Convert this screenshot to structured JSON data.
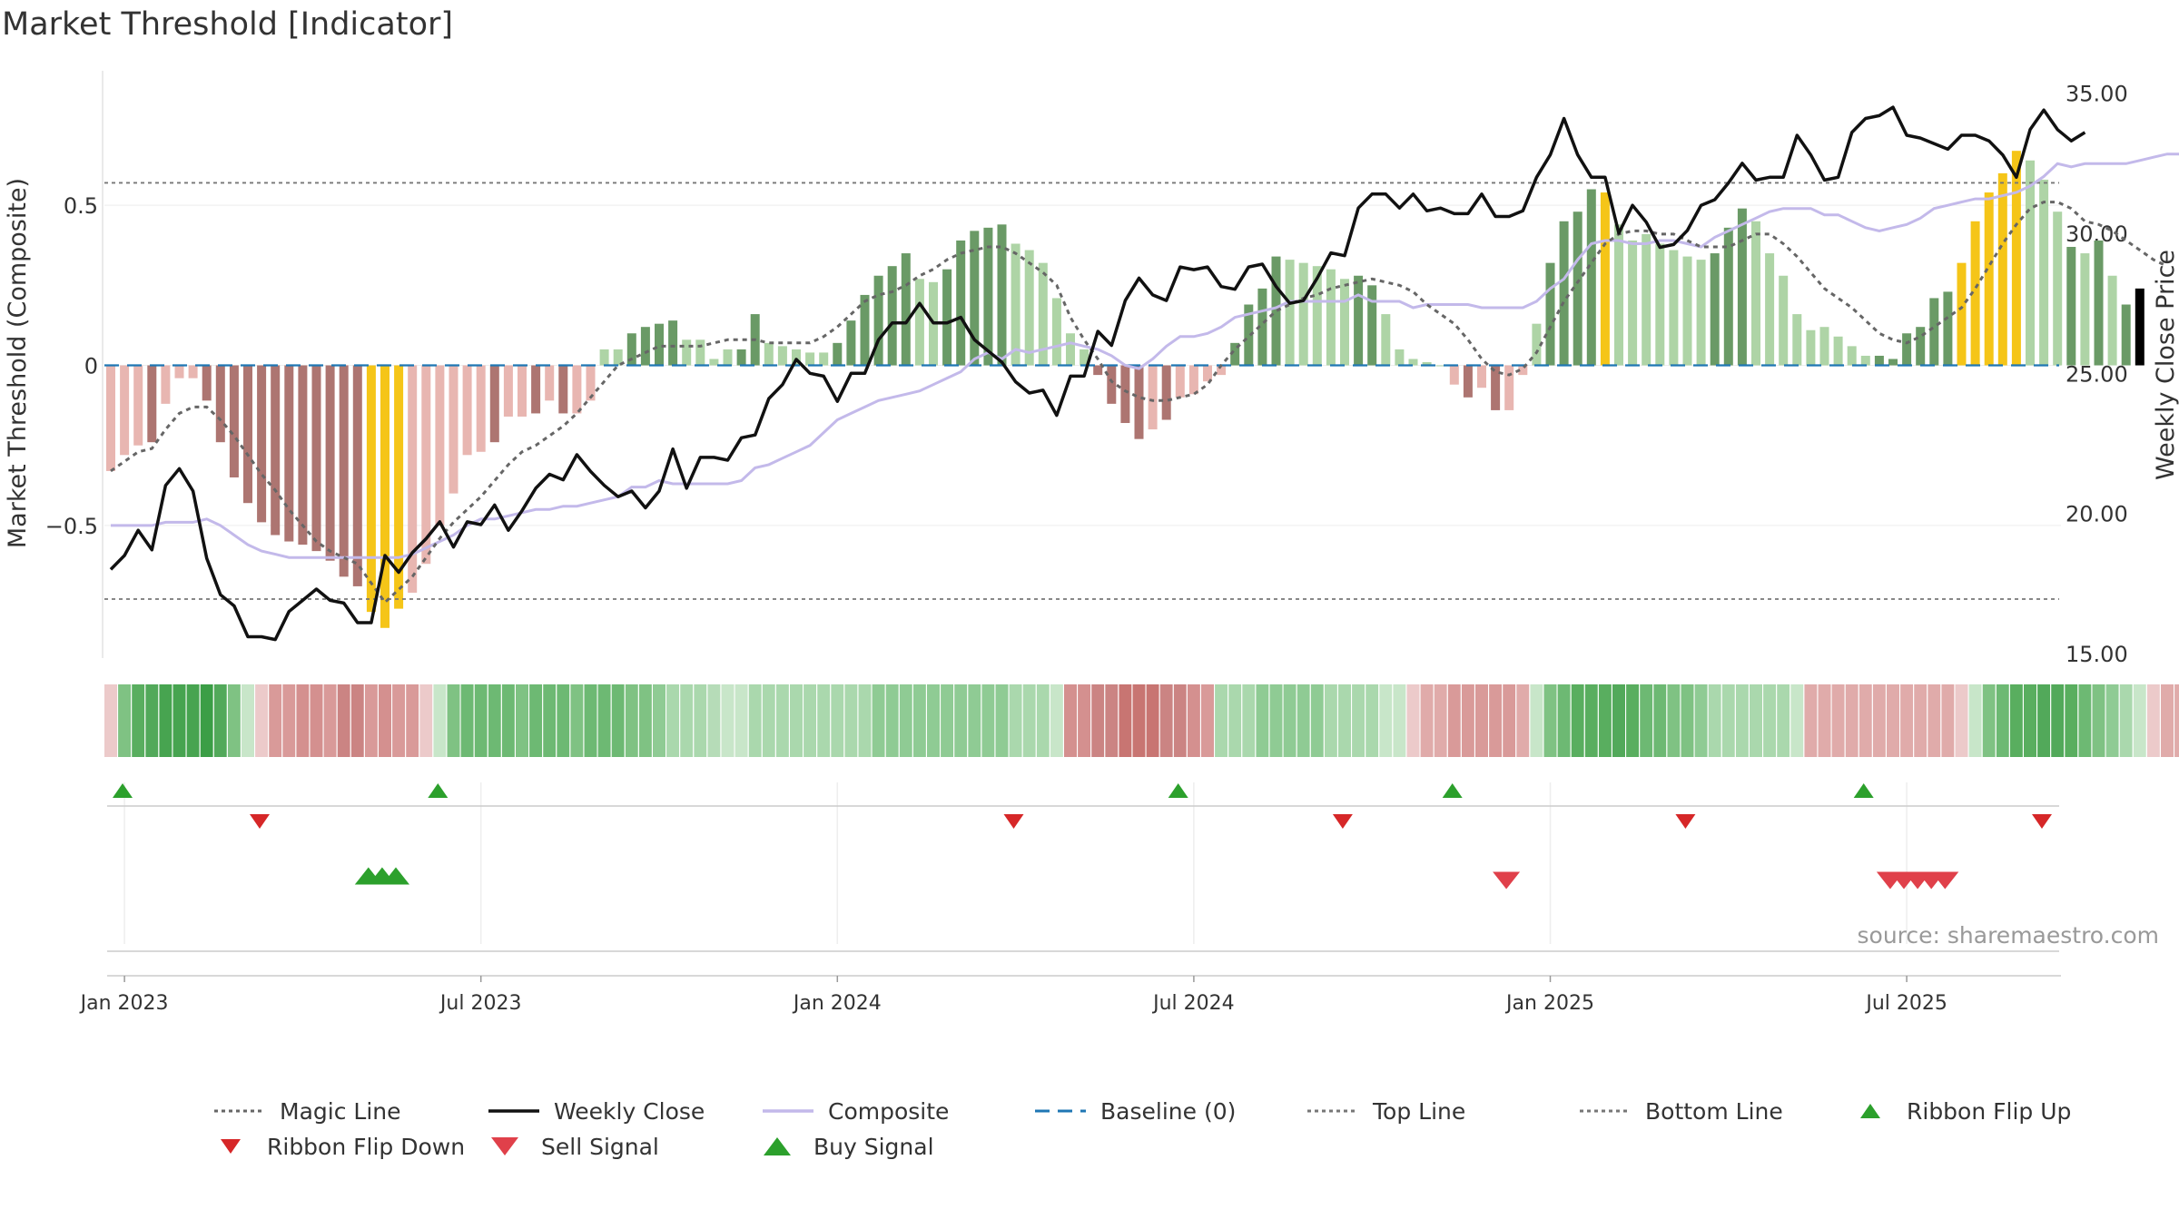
{
  "chart_data": {
    "type": "bar",
    "title": "Market Threshold [Indicator]",
    "ylabel_left": "Market Threshold (Composite)",
    "ylabel_right": "Weekly Close Price",
    "source": "source: sharemaestro.com",
    "left_ylim": [
      -0.9,
      0.92
    ],
    "right_ylim": [
      15.0,
      35.8
    ],
    "left_ticks": [
      {
        "value": 0.5,
        "label": "0.5"
      },
      {
        "value": 0,
        "label": "0"
      },
      {
        "value": -0.5,
        "label": "−0.5"
      }
    ],
    "right_ticks": [
      {
        "value": 35,
        "label": "35.00"
      },
      {
        "value": 30,
        "label": "30.00"
      },
      {
        "value": 25,
        "label": "25.00"
      },
      {
        "value": 20,
        "label": "20.00"
      },
      {
        "value": 15,
        "label": "15.00"
      }
    ],
    "x_ticks": [
      {
        "week": 1,
        "label": "Jan 2023"
      },
      {
        "week": 27,
        "label": "Jul 2023"
      },
      {
        "week": 53,
        "label": "Jan 2024"
      },
      {
        "week": 79,
        "label": "Jul 2024"
      },
      {
        "week": 105,
        "label": "Jan 2025"
      },
      {
        "week": 131,
        "label": "Jul 2025"
      }
    ],
    "top_line": 0.57,
    "bottom_line": -0.73,
    "weeks": 145,
    "composite_bars": [
      -0.33,
      -0.28,
      -0.25,
      -0.24,
      -0.12,
      -0.04,
      -0.04,
      -0.11,
      -0.24,
      -0.35,
      -0.43,
      -0.49,
      -0.53,
      -0.55,
      -0.56,
      -0.58,
      -0.61,
      -0.66,
      -0.69,
      -0.77,
      -0.82,
      -0.76,
      -0.71,
      -0.62,
      -0.5,
      -0.4,
      -0.28,
      -0.27,
      -0.24,
      -0.16,
      -0.16,
      -0.15,
      -0.11,
      -0.15,
      -0.15,
      -0.11,
      0.05,
      0.05,
      0.1,
      0.12,
      0.13,
      0.14,
      0.08,
      0.08,
      0.02,
      0.05,
      0.05,
      0.16,
      0.07,
      0.06,
      0.05,
      0.04,
      0.04,
      0.07,
      0.14,
      0.22,
      0.28,
      0.31,
      0.35,
      0.27,
      0.26,
      0.3,
      0.39,
      0.42,
      0.43,
      0.44,
      0.38,
      0.36,
      0.32,
      0.21,
      0.1,
      0.05,
      -0.03,
      -0.12,
      -0.18,
      -0.23,
      -0.2,
      -0.17,
      -0.1,
      -0.09,
      -0.05,
      -0.03,
      0.07,
      0.19,
      0.24,
      0.34,
      0.33,
      0.32,
      0.31,
      0.3,
      0.27,
      0.28,
      0.25,
      0.16,
      0.05,
      0.02,
      0.01,
      0.0,
      -0.06,
      -0.1,
      -0.07,
      -0.14,
      -0.14,
      -0.03,
      0.13,
      0.32,
      0.45,
      0.48,
      0.55,
      0.54,
      0.44,
      0.39,
      0.41,
      0.38,
      0.36,
      0.34,
      0.33,
      0.35,
      0.43,
      0.49,
      0.45,
      0.35,
      0.28,
      0.16,
      0.11,
      0.12,
      0.09,
      0.06,
      0.03,
      0.03,
      0.02,
      0.1,
      0.12,
      0.21,
      0.23,
      0.32,
      0.45,
      0.54,
      0.6,
      0.67,
      0.64,
      0.58,
      0.48,
      0.37,
      0.35,
      0.39,
      0.28,
      0.19,
      0.24
    ],
    "bar_colors": [
      "#e8b6b1",
      "#e8b6b1",
      "#e8b6b1",
      "#ad7571",
      "#e8b6b1",
      "#e8b6b1",
      "#e8b6b1",
      "#ad7571",
      "#ad7571",
      "#ad7571",
      "#ad7571",
      "#ad7571",
      "#ad7571",
      "#ad7571",
      "#ad7571",
      "#ad7571",
      "#ad7571",
      "#ad7571",
      "#ad7571",
      "#f5c518",
      "#f5c518",
      "#f5c518",
      "#e8b6b1",
      "#e8b6b1",
      "#e8b6b1",
      "#e8b6b1",
      "#e8b6b1",
      "#e8b6b1",
      "#ad7571",
      "#e8b6b1",
      "#e8b6b1",
      "#ad7571",
      "#e8b6b1",
      "#ad7571",
      "#e8b6b1",
      "#e8b6b1",
      "#aed4a6",
      "#aed4a6",
      "#6a9a66",
      "#6a9a66",
      "#6a9a66",
      "#6a9a66",
      "#aed4a6",
      "#aed4a6",
      "#aed4a6",
      "#aed4a6",
      "#6a9a66",
      "#6a9a66",
      "#aed4a6",
      "#aed4a6",
      "#aed4a6",
      "#aed4a6",
      "#aed4a6",
      "#6a9a66",
      "#6a9a66",
      "#6a9a66",
      "#6a9a66",
      "#6a9a66",
      "#6a9a66",
      "#aed4a6",
      "#aed4a6",
      "#6a9a66",
      "#6a9a66",
      "#6a9a66",
      "#6a9a66",
      "#6a9a66",
      "#aed4a6",
      "#aed4a6",
      "#aed4a6",
      "#aed4a6",
      "#aed4a6",
      "#aed4a6",
      "#ad7571",
      "#ad7571",
      "#ad7571",
      "#ad7571",
      "#e8b6b1",
      "#ad7571",
      "#e8b6b1",
      "#e8b6b1",
      "#e8b6b1",
      "#e8b6b1",
      "#6a9a66",
      "#6a9a66",
      "#6a9a66",
      "#6a9a66",
      "#aed4a6",
      "#aed4a6",
      "#aed4a6",
      "#aed4a6",
      "#aed4a6",
      "#6a9a66",
      "#6a9a66",
      "#aed4a6",
      "#aed4a6",
      "#aed4a6",
      "#aed4a6",
      "#aed4a6",
      "#e8b6b1",
      "#ad7571",
      "#e8b6b1",
      "#ad7571",
      "#e8b6b1",
      "#e8b6b1",
      "#aed4a6",
      "#6a9a66",
      "#6a9a66",
      "#6a9a66",
      "#6a9a66",
      "#f5c518",
      "#aed4a6",
      "#aed4a6",
      "#aed4a6",
      "#aed4a6",
      "#aed4a6",
      "#aed4a6",
      "#aed4a6",
      "#6a9a66",
      "#6a9a66",
      "#6a9a66",
      "#aed4a6",
      "#aed4a6",
      "#aed4a6",
      "#aed4a6",
      "#aed4a6",
      "#aed4a6",
      "#aed4a6",
      "#aed4a6",
      "#aed4a6",
      "#6a9a66",
      "#6a9a66",
      "#6a9a66",
      "#6a9a66",
      "#6a9a66",
      "#6a9a66",
      "#f5c518",
      "#f5c518",
      "#f5c518",
      "#f5c518",
      "#f5c518",
      "#aed4a6",
      "#aed4a6",
      "#aed4a6",
      "#6a9a66",
      "#aed4a6",
      "#6a9a66",
      "#aed4a6",
      "#6a9a66"
    ],
    "weekly_close": [
      18.0,
      18.5,
      19.4,
      18.7,
      21.0,
      21.6,
      20.8,
      18.4,
      17.1,
      16.7,
      15.6,
      15.6,
      15.5,
      16.5,
      16.9,
      17.3,
      16.9,
      16.8,
      16.1,
      16.1,
      18.5,
      17.9,
      18.6,
      19.1,
      19.7,
      18.8,
      19.7,
      19.6,
      20.3,
      19.4,
      20.1,
      20.9,
      21.4,
      21.2,
      22.1,
      21.5,
      21.0,
      20.6,
      20.8,
      20.2,
      20.8,
      22.3,
      20.9,
      22.0,
      22.0,
      21.9,
      22.7,
      22.8,
      24.1,
      24.6,
      25.5,
      25.0,
      24.9,
      24.0,
      25.0,
      25.0,
      26.2,
      26.8,
      26.8,
      27.5,
      26.8,
      26.8,
      27.0,
      26.2,
      25.8,
      25.4,
      24.7,
      24.3,
      24.4,
      23.5,
      24.9,
      24.9,
      26.5,
      26.0,
      27.6,
      28.4,
      27.8,
      27.6,
      28.8,
      28.7,
      28.8,
      28.1,
      28.0,
      28.8,
      28.9,
      28.1,
      27.5,
      27.6,
      28.4,
      29.3,
      29.2,
      30.9,
      31.4,
      31.4,
      30.9,
      31.4,
      30.8,
      30.9,
      30.7,
      30.7,
      31.4,
      30.6,
      30.6,
      30.8,
      32.0,
      32.8,
      34.1,
      32.8,
      32.0,
      32.0,
      30.0,
      31.0,
      30.4,
      29.5,
      29.6,
      30.1,
      31.0,
      31.2,
      31.8,
      32.5,
      31.9,
      32.0,
      32.0,
      33.5,
      32.8,
      31.9,
      32.0,
      33.6,
      34.1,
      34.2,
      34.5,
      33.5,
      33.4,
      33.2,
      33.0,
      33.5,
      33.5,
      33.3,
      32.8,
      32.0,
      33.7,
      34.4,
      33.7,
      33.3,
      33.6
    ],
    "composite_line": [
      -0.5,
      -0.5,
      -0.5,
      -0.5,
      -0.49,
      -0.49,
      -0.49,
      -0.48,
      -0.5,
      -0.53,
      -0.56,
      -0.58,
      -0.59,
      -0.6,
      -0.6,
      -0.6,
      -0.6,
      -0.6,
      -0.6,
      -0.6,
      -0.6,
      -0.6,
      -0.59,
      -0.57,
      -0.55,
      -0.53,
      -0.5,
      -0.48,
      -0.48,
      -0.47,
      -0.46,
      -0.45,
      -0.45,
      -0.44,
      -0.44,
      -0.43,
      -0.42,
      -0.41,
      -0.38,
      -0.38,
      -0.36,
      -0.37,
      -0.37,
      -0.37,
      -0.37,
      -0.37,
      -0.36,
      -0.32,
      -0.31,
      -0.29,
      -0.27,
      -0.25,
      -0.21,
      -0.17,
      -0.15,
      -0.13,
      -0.11,
      -0.1,
      -0.09,
      -0.08,
      -0.06,
      -0.04,
      -0.02,
      0.02,
      0.04,
      0.02,
      0.05,
      0.04,
      0.05,
      0.06,
      0.07,
      0.06,
      0.05,
      0.03,
      0.0,
      -0.01,
      0.02,
      0.06,
      0.09,
      0.09,
      0.1,
      0.12,
      0.15,
      0.16,
      0.17,
      0.18,
      0.2,
      0.2,
      0.2,
      0.2,
      0.2,
      0.22,
      0.2,
      0.2,
      0.2,
      0.18,
      0.19,
      0.19,
      0.19,
      0.19,
      0.18,
      0.18,
      0.18,
      0.18,
      0.2,
      0.24,
      0.27,
      0.33,
      0.38,
      0.39,
      0.39,
      0.38,
      0.38,
      0.39,
      0.39,
      0.38,
      0.37,
      0.4,
      0.42,
      0.44,
      0.46,
      0.48,
      0.49,
      0.49,
      0.49,
      0.47,
      0.47,
      0.45,
      0.43,
      0.42,
      0.43,
      0.44,
      0.46,
      0.49,
      0.5,
      0.51,
      0.52,
      0.52,
      0.53,
      0.54,
      0.56,
      0.59,
      0.63,
      0.62,
      0.63,
      0.63,
      0.63,
      0.63,
      0.64,
      0.65,
      0.66,
      0.66,
      0.66
    ],
    "magic_line": [
      -0.33,
      -0.3,
      -0.27,
      -0.26,
      -0.2,
      -0.15,
      -0.13,
      -0.13,
      -0.17,
      -0.22,
      -0.28,
      -0.34,
      -0.39,
      -0.45,
      -0.5,
      -0.55,
      -0.58,
      -0.6,
      -0.62,
      -0.68,
      -0.74,
      -0.7,
      -0.66,
      -0.6,
      -0.54,
      -0.49,
      -0.45,
      -0.41,
      -0.36,
      -0.31,
      -0.27,
      -0.25,
      -0.22,
      -0.19,
      -0.15,
      -0.1,
      -0.05,
      0.0,
      0.02,
      0.04,
      0.06,
      0.06,
      0.06,
      0.06,
      0.07,
      0.08,
      0.08,
      0.08,
      0.07,
      0.07,
      0.07,
      0.07,
      0.09,
      0.12,
      0.16,
      0.2,
      0.22,
      0.23,
      0.25,
      0.28,
      0.3,
      0.33,
      0.35,
      0.36,
      0.37,
      0.37,
      0.35,
      0.32,
      0.29,
      0.25,
      0.15,
      0.08,
      0.02,
      -0.05,
      -0.08,
      -0.1,
      -0.11,
      -0.11,
      -0.1,
      -0.09,
      -0.06,
      0.0,
      0.05,
      0.09,
      0.13,
      0.17,
      0.19,
      0.21,
      0.22,
      0.24,
      0.25,
      0.26,
      0.27,
      0.26,
      0.25,
      0.23,
      0.19,
      0.16,
      0.13,
      0.08,
      0.02,
      -0.02,
      -0.03,
      -0.01,
      0.04,
      0.12,
      0.2,
      0.26,
      0.32,
      0.38,
      0.41,
      0.42,
      0.42,
      0.41,
      0.41,
      0.39,
      0.37,
      0.37,
      0.37,
      0.39,
      0.41,
      0.41,
      0.38,
      0.34,
      0.29,
      0.24,
      0.21,
      0.18,
      0.14,
      0.1,
      0.08,
      0.07,
      0.09,
      0.12,
      0.15,
      0.18,
      0.24,
      0.31,
      0.38,
      0.44,
      0.49,
      0.51,
      0.51,
      0.49,
      0.45,
      0.44,
      0.42,
      0.39,
      0.36,
      0.33,
      0.31
    ],
    "ribbon_colors": [
      "#eccaca",
      "#7fc283",
      "#59ae5f",
      "#52a95a",
      "#47a450",
      "#47a450",
      "#47a450",
      "#3b9e46",
      "#52a95a",
      "#7fc283",
      "#c8e6c9",
      "#eccaca",
      "#d99a99",
      "#d99a99",
      "#d4908f",
      "#d4908f",
      "#d99a99",
      "#cb8483",
      "#cb8483",
      "#d99a99",
      "#d4908f",
      "#d99a99",
      "#d99a99",
      "#eccaca",
      "#c8e6c9",
      "#7fc283",
      "#6db973",
      "#6db973",
      "#6db973",
      "#6db973",
      "#7fc283",
      "#6db973",
      "#6db973",
      "#6db973",
      "#7fc283",
      "#6db973",
      "#6db973",
      "#6db973",
      "#7fc283",
      "#7fc283",
      "#8fcb94",
      "#aad8ad",
      "#aad8ad",
      "#aad8ad",
      "#b6dcb8",
      "#c8e6c9",
      "#c8e6c9",
      "#aad8ad",
      "#aad8ad",
      "#aad8ad",
      "#aad8ad",
      "#aad8ad",
      "#aad8ad",
      "#aad8ad",
      "#aad8ad",
      "#aad8ad",
      "#8fcb94",
      "#8fcb94",
      "#8fcb94",
      "#8fcb94",
      "#8fcb94",
      "#8fcb94",
      "#8fcb94",
      "#8fcb94",
      "#8fcb94",
      "#8fcb94",
      "#aad8ad",
      "#aad8ad",
      "#aad8ad",
      "#c8e6c9",
      "#d4908f",
      "#d4908f",
      "#cb8483",
      "#cb8483",
      "#c87572",
      "#c87572",
      "#c87572",
      "#cb8483",
      "#cb8483",
      "#d4908f",
      "#d99a99",
      "#aad8ad",
      "#aad8ad",
      "#aad8ad",
      "#8fcb94",
      "#8fcb94",
      "#8fcb94",
      "#8fcb94",
      "#8fcb94",
      "#aad8ad",
      "#aad8ad",
      "#aad8ad",
      "#aad8ad",
      "#c8e6c9",
      "#c8e6c9",
      "#eccaca",
      "#e0abaa",
      "#e0abaa",
      "#d99a99",
      "#d99a99",
      "#d99a99",
      "#d99a99",
      "#d99a99",
      "#e0abaa",
      "#c8e6c9",
      "#7fc283",
      "#6db973",
      "#59ae5f",
      "#59ae5f",
      "#59ae5f",
      "#52a95a",
      "#59ae5f",
      "#6db973",
      "#6db973",
      "#7fc283",
      "#7fc283",
      "#8fcb94",
      "#aad8ad",
      "#aad8ad",
      "#aad8ad",
      "#aad8ad",
      "#aad8ad",
      "#aad8ad",
      "#c8e6c9",
      "#e0abaa",
      "#e0abaa",
      "#e0abaa",
      "#e0abaa",
      "#e0abaa",
      "#e0abaa",
      "#e0abaa",
      "#e0abaa",
      "#e0abaa",
      "#e0abaa",
      "#e0abaa",
      "#eccaca",
      "#c8e6c9",
      "#7fc283",
      "#6db973",
      "#59ae5f",
      "#59ae5f",
      "#52a95a",
      "#52a95a",
      "#59ae5f",
      "#6db973",
      "#7fc283",
      "#8fcb94",
      "#aad8ad",
      "#c8e6c9",
      "#eccaca",
      "#e0abaa",
      "#e0abaa"
    ],
    "ribbon_flip_up_weeks": [
      0,
      23,
      77,
      97,
      127
    ],
    "ribbon_flip_down_weeks": [
      10,
      65,
      89,
      114,
      140
    ],
    "buy_signal_weeks": [
      18,
      19,
      20
    ],
    "sell_signal_weeks": [
      101,
      129,
      130,
      131,
      132,
      133
    ],
    "series_colors": {
      "magic_line": "#666666",
      "weekly_close": "#111111",
      "composite": "#c3b9ea",
      "baseline": "#1f77b4",
      "top_line": "#777777",
      "bottom_line": "#777777",
      "ribbon_flip_up": "#2ca02c",
      "ribbon_flip_down": "#d62728",
      "sell_signal": "#e0404a",
      "buy_signal": "#2ca02c"
    },
    "legend": [
      {
        "key": "magic_line",
        "label": "Magic Line",
        "style": "dotted"
      },
      {
        "key": "weekly_close",
        "label": "Weekly Close",
        "style": "solid"
      },
      {
        "key": "composite",
        "label": "Composite",
        "style": "solid"
      },
      {
        "key": "baseline",
        "label": "Baseline (0)",
        "style": "dashed"
      },
      {
        "key": "top_line",
        "label": "Top Line",
        "style": "dotted"
      },
      {
        "key": "bottom_line",
        "label": "Bottom Line",
        "style": "dotted"
      },
      {
        "key": "ribbon_flip_up",
        "label": "Ribbon Flip Up",
        "style": "triangle-up-small"
      },
      {
        "key": "ribbon_flip_down",
        "label": "Ribbon Flip Down",
        "style": "triangle-down-small"
      },
      {
        "key": "sell_signal",
        "label": "Sell Signal",
        "style": "triangle-down-large"
      },
      {
        "key": "buy_signal",
        "label": "Buy Signal",
        "style": "triangle-up-large"
      }
    ]
  }
}
